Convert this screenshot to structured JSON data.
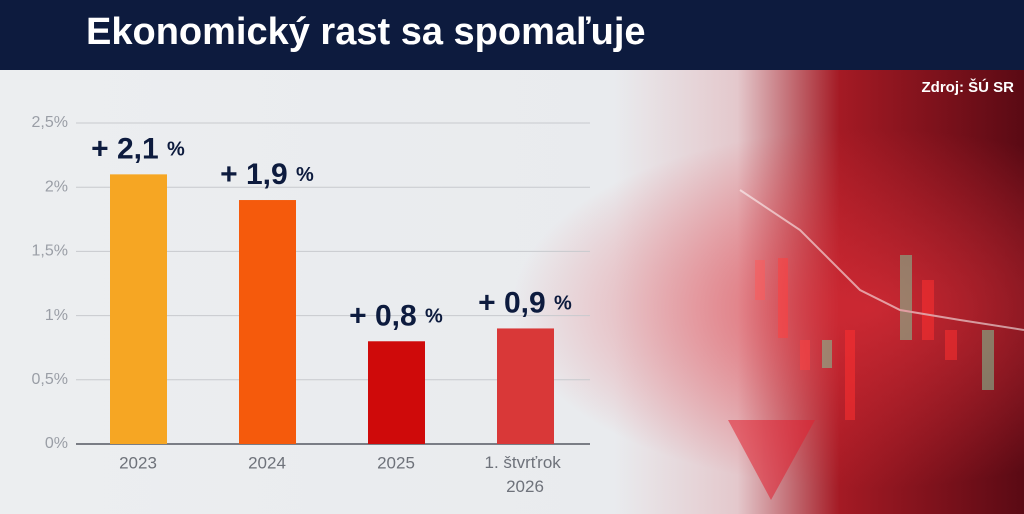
{
  "chart_data": {
    "type": "bar",
    "title": "Ekonomický rast sa spomaľuje",
    "source": "Zdroj: ŠÚ SR",
    "categories": [
      "2023",
      "2024",
      "2025",
      "1. štvrťrok 2026"
    ],
    "values": [
      2.1,
      1.9,
      0.8,
      0.9
    ],
    "value_labels": [
      "+ 2,1 %",
      "+ 1,9 %",
      "+ 0,8 %",
      "+ 0,9 %"
    ],
    "colors": [
      "#f6a623",
      "#f55a0c",
      "#cf0a0a",
      "#d93838"
    ],
    "ylim": [
      0,
      2.5
    ],
    "yticks": [
      {
        "value": 0,
        "label": "0%"
      },
      {
        "value": 0.5,
        "label": "0,5%"
      },
      {
        "value": 1,
        "label": "1%"
      },
      {
        "value": 1.5,
        "label": "1,5%"
      },
      {
        "value": 2,
        "label": "2%"
      },
      {
        "value": 2.5,
        "label": "2,5%"
      }
    ],
    "grid": true
  }
}
